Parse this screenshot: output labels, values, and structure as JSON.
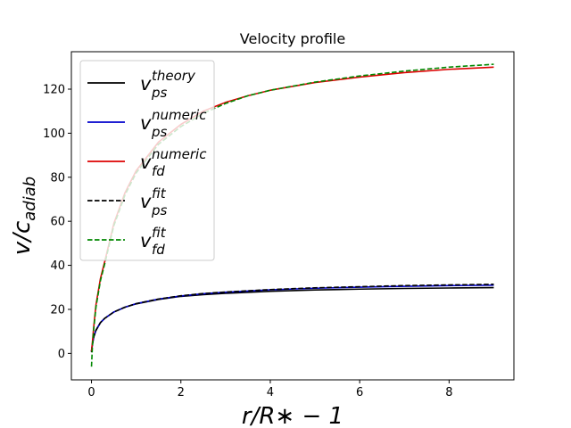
{
  "chart_data": {
    "type": "line",
    "title": "Velocity profile",
    "xlabel": "r/R∗ − 1",
    "ylabel": "v/c",
    "ylabel_sub": "adiab",
    "xlim": [
      -0.45,
      9.45
    ],
    "ylim": [
      -12,
      137
    ],
    "xticks": [
      0,
      2,
      4,
      6,
      8
    ],
    "yticks": [
      0,
      20,
      40,
      60,
      80,
      100,
      120
    ],
    "grid": false,
    "legend_position": "top-left",
    "series": [
      {
        "name": "v_ps^theory",
        "legend_main": "v",
        "legend_sup": "theory",
        "legend_sub": "ps",
        "color": "#000000",
        "dash": "solid",
        "x": [
          0,
          0.02,
          0.05,
          0.1,
          0.2,
          0.3,
          0.5,
          0.75,
          1,
          1.5,
          2,
          2.5,
          3,
          4,
          5,
          6,
          7,
          8,
          9
        ],
        "y": [
          1,
          4,
          7.5,
          10.5,
          14,
          16,
          18.8,
          21,
          22.5,
          24.5,
          25.9,
          26.7,
          27.3,
          28.2,
          28.8,
          29.2,
          29.5,
          29.7,
          29.9
        ]
      },
      {
        "name": "v_ps^numeric",
        "legend_main": "v",
        "legend_sup": "numeric",
        "legend_sub": "ps",
        "color": "#0000cc",
        "dash": "solid",
        "x": [
          0,
          0.02,
          0.05,
          0.1,
          0.2,
          0.3,
          0.5,
          0.75,
          1,
          1.5,
          2,
          2.5,
          3,
          4,
          5,
          6,
          7,
          8,
          9
        ],
        "y": [
          1,
          4,
          7.5,
          10.5,
          14,
          16,
          18.8,
          21,
          22.6,
          24.7,
          26.1,
          27.1,
          27.8,
          28.9,
          29.6,
          30.1,
          30.5,
          30.8,
          31
        ]
      },
      {
        "name": "v_fd^numeric",
        "legend_main": "v",
        "legend_sup": "numeric",
        "legend_sub": "fd",
        "color": "#dd0000",
        "dash": "solid",
        "x": [
          0,
          0.02,
          0.05,
          0.1,
          0.2,
          0.3,
          0.5,
          0.75,
          1,
          1.5,
          2,
          2.5,
          3,
          3.5,
          4,
          5,
          6,
          7,
          8,
          9
        ],
        "y": [
          1,
          5,
          12,
          22,
          34,
          42,
          59,
          73,
          83,
          96,
          104,
          110,
          114,
          117,
          119.5,
          123,
          125.5,
          127.5,
          129,
          130
        ]
      },
      {
        "name": "v_ps^fit",
        "legend_main": "v",
        "legend_sup": "fit",
        "legend_sub": "ps",
        "color": "#000000",
        "dash": "dashed",
        "x": [
          0,
          0.02,
          0.05,
          0.1,
          0.2,
          0.3,
          0.5,
          0.75,
          1,
          1.5,
          2,
          2.5,
          3,
          4,
          5,
          6,
          7,
          8,
          9
        ],
        "y": [
          0.5,
          4,
          7.5,
          10.5,
          14,
          16,
          18.8,
          21,
          22.6,
          24.7,
          26.2,
          27.2,
          27.9,
          29,
          29.8,
          30.3,
          30.8,
          31.1,
          31.4
        ]
      },
      {
        "name": "v_fd^fit",
        "legend_main": "v",
        "legend_sup": "fit",
        "legend_sub": "fd",
        "color": "#008800",
        "dash": "dashed",
        "x": [
          0,
          0.02,
          0.05,
          0.1,
          0.2,
          0.3,
          0.5,
          0.75,
          1,
          1.5,
          2,
          2.5,
          3,
          3.5,
          4,
          5,
          6,
          7,
          8,
          9
        ],
        "y": [
          -6,
          3,
          11,
          21,
          33,
          41,
          58,
          72,
          82,
          95,
          103,
          109,
          113.5,
          117,
          119.5,
          123.2,
          126,
          128.2,
          130,
          131.3
        ]
      }
    ]
  }
}
